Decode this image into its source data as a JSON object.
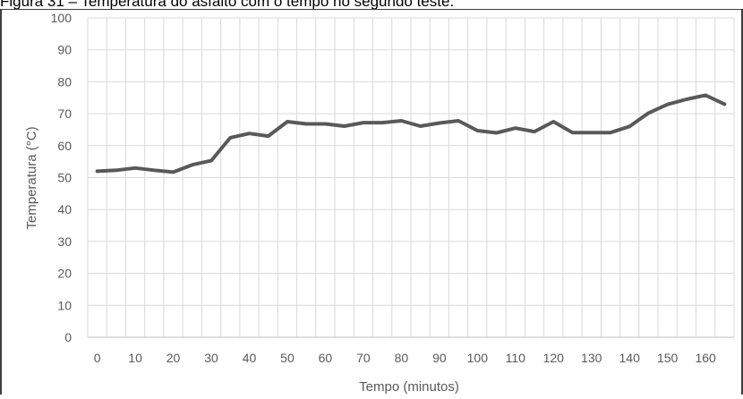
{
  "caption": "Figura 31 – Temperatura do asfalto com o tempo no segundo teste.",
  "colors": {
    "line": "#595959",
    "grid": "#d9d9d9",
    "axis_text": "#595959",
    "frame": "#000000"
  },
  "chart_data": {
    "type": "line",
    "title": "",
    "xlabel": "Tempo (minutos)",
    "ylabel": "Temperatura (°C)",
    "xlim": [
      -2.5,
      167.5
    ],
    "ylim": [
      0,
      100
    ],
    "x_ticks": [
      0,
      10,
      20,
      30,
      40,
      50,
      60,
      70,
      80,
      90,
      100,
      110,
      120,
      130,
      140,
      150,
      160
    ],
    "y_ticks": [
      0,
      10,
      20,
      30,
      40,
      50,
      60,
      70,
      80,
      90,
      100
    ],
    "grid": true,
    "legend": "none",
    "series": [
      {
        "x": [
          0,
          5,
          10,
          15,
          20,
          25,
          30,
          35,
          40,
          45,
          50,
          55,
          60,
          65,
          70,
          75,
          80,
          85,
          90,
          95,
          100,
          105,
          110,
          115,
          120,
          125,
          130,
          135,
          140,
          145,
          150,
          155,
          160,
          165
        ],
        "values": [
          52,
          52.3,
          53,
          52.3,
          51.7,
          54,
          55.3,
          62.5,
          63.8,
          63,
          67.5,
          66.8,
          66.8,
          66.1,
          67.2,
          67.2,
          67.8,
          66.1,
          67.1,
          67.8,
          64.7,
          64,
          65.5,
          64.4,
          67.5,
          64.1,
          64.1,
          64.1,
          66,
          70.2,
          72.9,
          74.5,
          75.8,
          73
        ]
      }
    ]
  }
}
